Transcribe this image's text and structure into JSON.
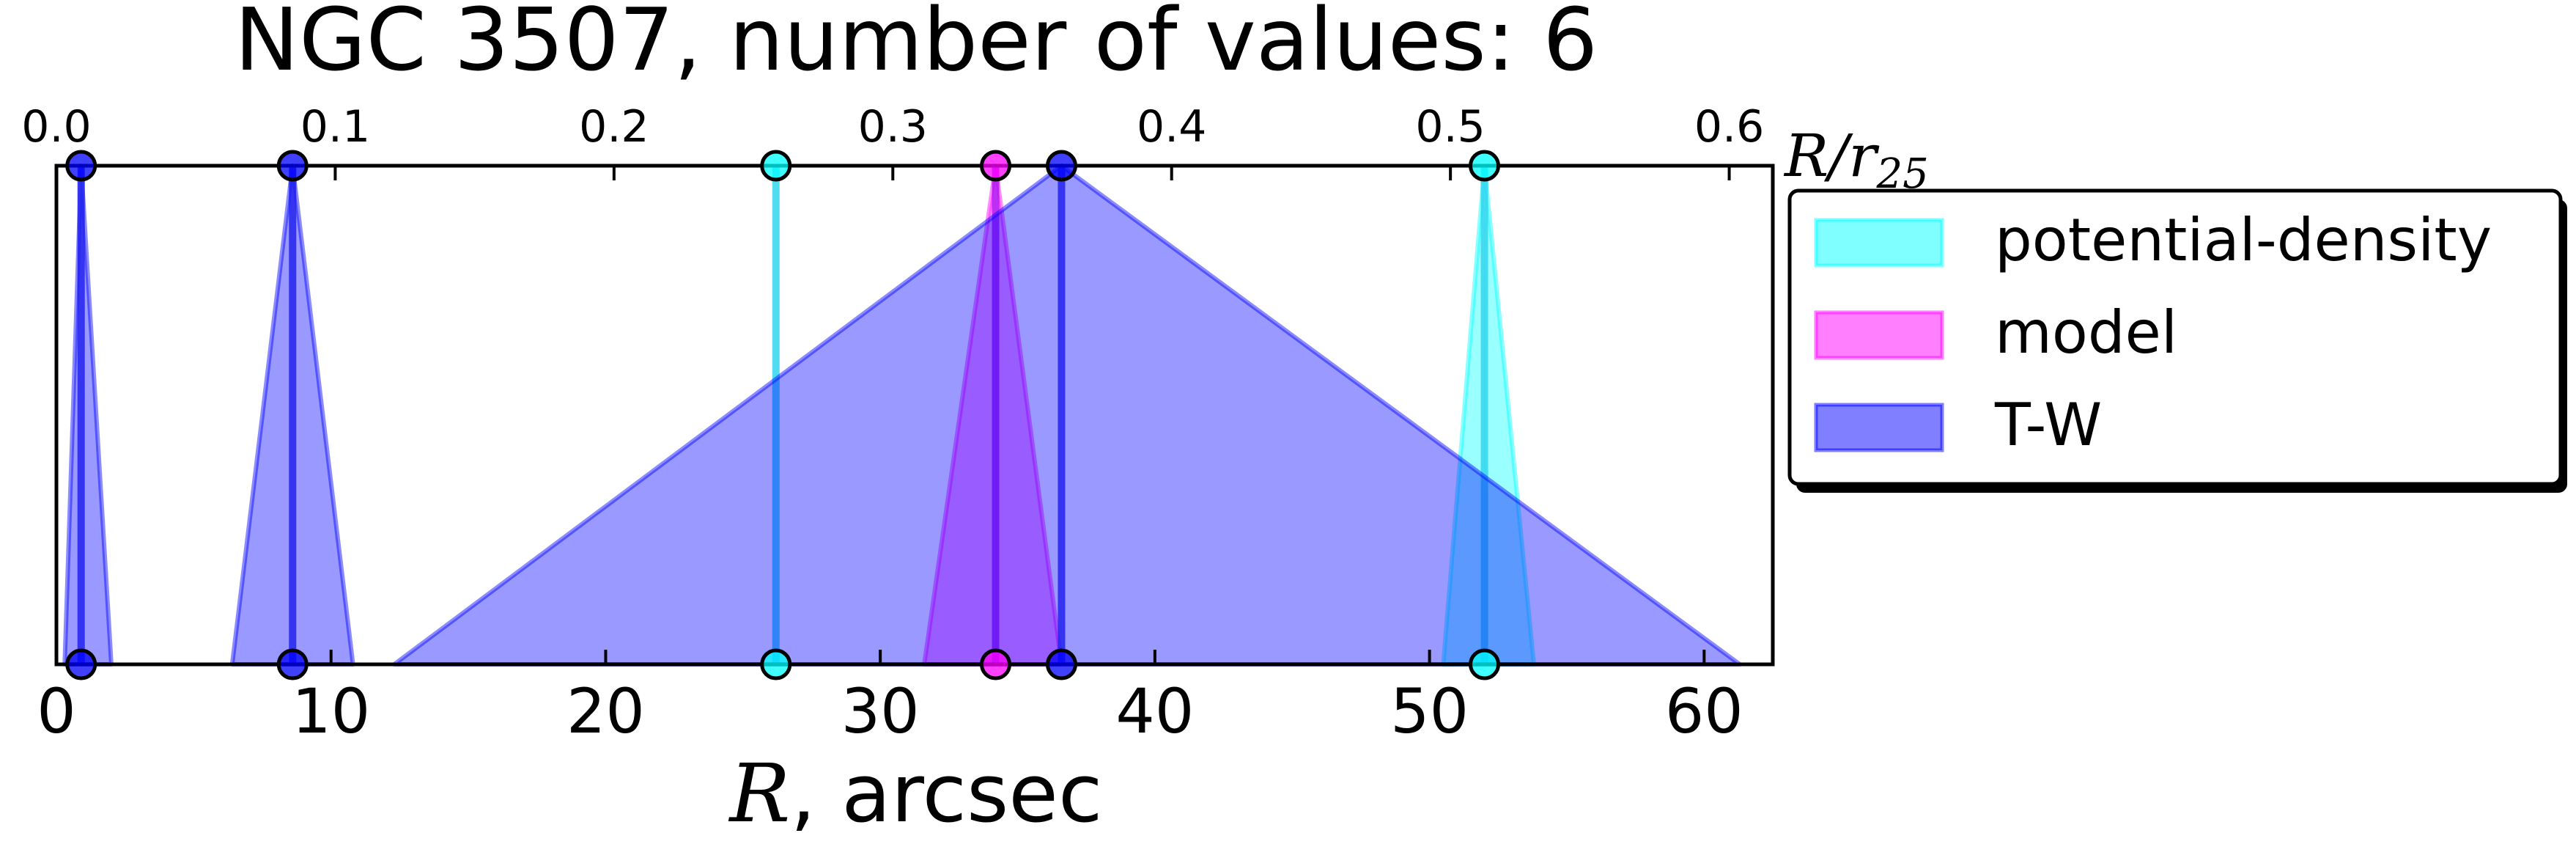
{
  "chart_data": {
    "type": "area",
    "title": "NGC 3507, number of values: 6",
    "xlabel_var": "R",
    "xlabel_unit": ", arcsec",
    "x2label": "R/r",
    "x2label_sub": "25",
    "xlim": [
      0,
      62.5
    ],
    "ylim": [
      0,
      1
    ],
    "x_ticks": [
      "0",
      "10",
      "20",
      "30",
      "40",
      "50",
      "60"
    ],
    "x_tick_values": [
      0,
      10,
      20,
      30,
      40,
      50,
      60
    ],
    "x2_ticks": [
      "0.0",
      "0.1",
      "0.2",
      "0.3",
      "0.4",
      "0.5",
      "0.6"
    ],
    "x2_tick_values": [
      0.0,
      0.1,
      0.2,
      0.3,
      0.4,
      0.5,
      0.6
    ],
    "x2_per_x": 0.00985,
    "grid": false,
    "legend_position": "right",
    "series": [
      {
        "name": "potential-density",
        "color": "#00ffff",
        "line_color": "#33d6f0",
        "values": [
          {
            "r": 26.2,
            "left": 26.2,
            "right": 26.2
          },
          {
            "r": 52.0,
            "left": 50.5,
            "right": 53.8
          }
        ]
      },
      {
        "name": "model",
        "color": "#ff00ff",
        "line_color": "#b21cf0",
        "values": [
          {
            "r": 34.2,
            "left": 31.6,
            "right": 36.6
          }
        ]
      },
      {
        "name": "T-W",
        "color": "#0000ff",
        "line_color": "#2222ee",
        "values": [
          {
            "r": 0.9,
            "left": 0.3,
            "right": 2.0
          },
          {
            "r": 8.6,
            "left": 6.4,
            "right": 10.8
          },
          {
            "r": 36.6,
            "left": 12.3,
            "right": 61.3
          }
        ]
      }
    ]
  }
}
